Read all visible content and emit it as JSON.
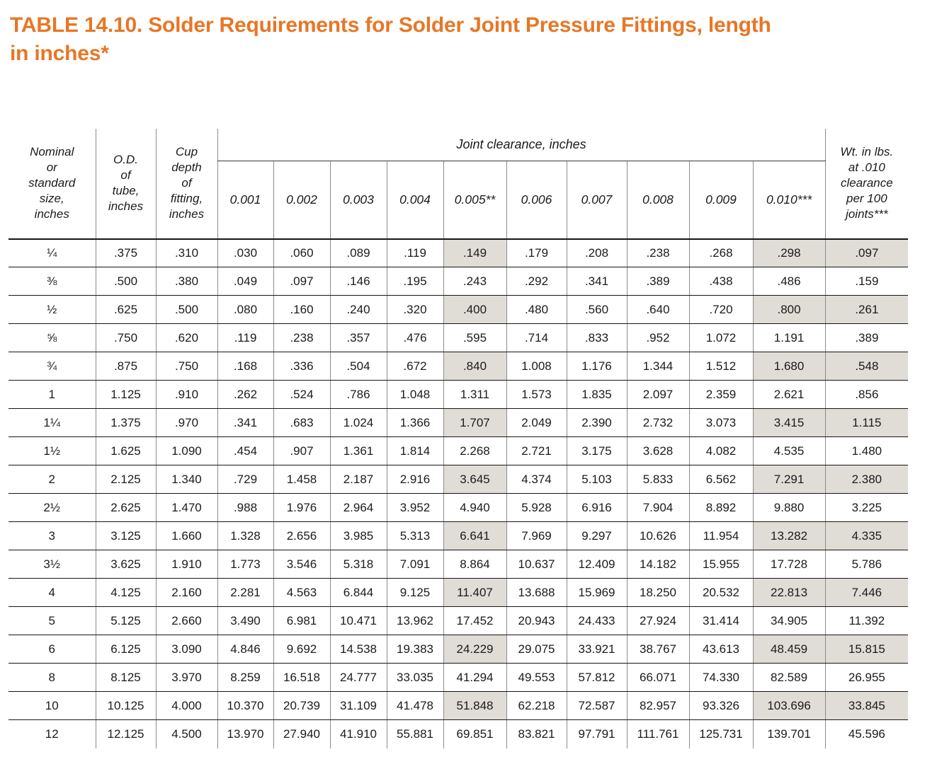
{
  "title": "TABLE 14.10. Solder Requirements for Solder Joint Pressure Fittings, length\nin inches*",
  "colors": {
    "accent_orange": "#e87625",
    "row_shade": "#e0dcd6"
  },
  "table": {
    "header": {
      "nominal": "Nominal\nor\nstandard\nsize,\ninches",
      "od": "O.D.\nof\ntube,\ninches",
      "cup": "Cup\ndepth\nof\nfitting,\ninches",
      "joint_clearance": "Joint clearance, inches",
      "clearances": [
        "0.001",
        "0.002",
        "0.003",
        "0.004",
        "0.005**",
        "0.006",
        "0.007",
        "0.008",
        "0.009",
        "0.010***"
      ],
      "wt": "Wt. in lbs.\nat .010\nclearance\nper 100\njoints***"
    },
    "rows": [
      {
        "size": "¼",
        "od": ".375",
        "cup": ".310",
        "values": [
          ".030",
          ".060",
          ".089",
          ".119",
          ".149",
          ".179",
          ".208",
          ".238",
          ".268",
          ".298"
        ],
        "wt": ".097"
      },
      {
        "size": "⅜",
        "od": ".500",
        "cup": ".380",
        "values": [
          ".049",
          ".097",
          ".146",
          ".195",
          ".243",
          ".292",
          ".341",
          ".389",
          ".438",
          ".486"
        ],
        "wt": ".159"
      },
      {
        "size": "½",
        "od": ".625",
        "cup": ".500",
        "values": [
          ".080",
          ".160",
          ".240",
          ".320",
          ".400",
          ".480",
          ".560",
          ".640",
          ".720",
          ".800"
        ],
        "wt": ".261"
      },
      {
        "size": "⅝",
        "od": ".750",
        "cup": ".620",
        "values": [
          ".119",
          ".238",
          ".357",
          ".476",
          ".595",
          ".714",
          ".833",
          ".952",
          "1.072",
          "1.191"
        ],
        "wt": ".389"
      },
      {
        "size": "¾",
        "od": ".875",
        "cup": ".750",
        "values": [
          ".168",
          ".336",
          ".504",
          ".672",
          ".840",
          "1.008",
          "1.176",
          "1.344",
          "1.512",
          "1.680"
        ],
        "wt": ".548"
      },
      {
        "size": "1",
        "od": "1.125",
        "cup": ".910",
        "values": [
          ".262",
          ".524",
          ".786",
          "1.048",
          "1.311",
          "1.573",
          "1.835",
          "2.097",
          "2.359",
          "2.621"
        ],
        "wt": ".856"
      },
      {
        "size": "1¼",
        "od": "1.375",
        "cup": ".970",
        "values": [
          ".341",
          ".683",
          "1.024",
          "1.366",
          "1.707",
          "2.049",
          "2.390",
          "2.732",
          "3.073",
          "3.415"
        ],
        "wt": "1.115"
      },
      {
        "size": "1½",
        "od": "1.625",
        "cup": "1.090",
        "values": [
          ".454",
          ".907",
          "1.361",
          "1.814",
          "2.268",
          "2.721",
          "3.175",
          "3.628",
          "4.082",
          "4.535"
        ],
        "wt": "1.480"
      },
      {
        "size": "2",
        "od": "2.125",
        "cup": "1.340",
        "values": [
          ".729",
          "1.458",
          "2.187",
          "2.916",
          "3.645",
          "4.374",
          "5.103",
          "5.833",
          "6.562",
          "7.291"
        ],
        "wt": "2.380"
      },
      {
        "size": "2½",
        "od": "2.625",
        "cup": "1.470",
        "values": [
          ".988",
          "1.976",
          "2.964",
          "3.952",
          "4.940",
          "5.928",
          "6.916",
          "7.904",
          "8.892",
          "9.880"
        ],
        "wt": "3.225"
      },
      {
        "size": "3",
        "od": "3.125",
        "cup": "1.660",
        "values": [
          "1.328",
          "2.656",
          "3.985",
          "5.313",
          "6.641",
          "7.969",
          "9.297",
          "10.626",
          "11.954",
          "13.282"
        ],
        "wt": "4.335"
      },
      {
        "size": "3½",
        "od": "3.625",
        "cup": "1.910",
        "values": [
          "1.773",
          "3.546",
          "5.318",
          "7.091",
          "8.864",
          "10.637",
          "12.409",
          "14.182",
          "15.955",
          "17.728"
        ],
        "wt": "5.786"
      },
      {
        "size": "4",
        "od": "4.125",
        "cup": "2.160",
        "values": [
          "2.281",
          "4.563",
          "6.844",
          "9.125",
          "11.407",
          "13.688",
          "15.969",
          "18.250",
          "20.532",
          "22.813"
        ],
        "wt": "7.446"
      },
      {
        "size": "5",
        "od": "5.125",
        "cup": "2.660",
        "values": [
          "3.490",
          "6.981",
          "10.471",
          "13.962",
          "17.452",
          "20.943",
          "24.433",
          "27.924",
          "31.414",
          "34.905"
        ],
        "wt": "11.392"
      },
      {
        "size": "6",
        "od": "6.125",
        "cup": "3.090",
        "values": [
          "4.846",
          "9.692",
          "14.538",
          "19.383",
          "24.229",
          "29.075",
          "33.921",
          "38.767",
          "43.613",
          "48.459"
        ],
        "wt": "15.815"
      },
      {
        "size": "8",
        "od": "8.125",
        "cup": "3.970",
        "values": [
          "8.259",
          "16.518",
          "24.777",
          "33.035",
          "41.294",
          "49.553",
          "57.812",
          "66.071",
          "74.330",
          "82.589"
        ],
        "wt": "26.955"
      },
      {
        "size": "10",
        "od": "10.125",
        "cup": "4.000",
        "values": [
          "10.370",
          "20.739",
          "31.109",
          "41.478",
          "51.848",
          "62.218",
          "72.587",
          "82.957",
          "93.326",
          "103.696"
        ],
        "wt": "33.845"
      },
      {
        "size": "12",
        "od": "12.125",
        "cup": "4.500",
        "values": [
          "13.970",
          "27.940",
          "41.910",
          "55.881",
          "69.851",
          "83.821",
          "97.791",
          "111.761",
          "125.731",
          "139.701"
        ],
        "wt": "45.596"
      }
    ]
  }
}
